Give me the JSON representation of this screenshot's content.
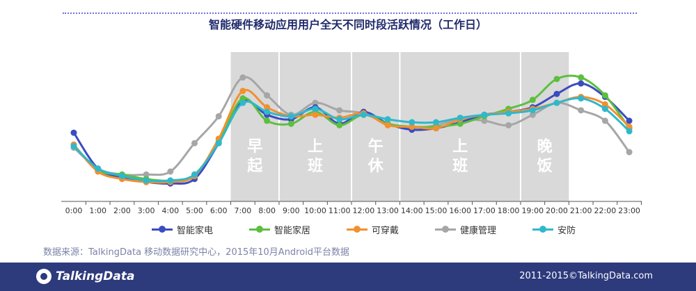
{
  "chart_data": {
    "type": "line",
    "title": "智能硬件移动应用用户全天不同时段活跃情况（工作日）",
    "categories": [
      "0:00",
      "1:00",
      "2:00",
      "3:00",
      "4:00",
      "5:00",
      "6:00",
      "7:00",
      "8:00",
      "9:00",
      "10:00",
      "11:00",
      "12:00",
      "13:00",
      "14:00",
      "15:00",
      "16:00",
      "17:00",
      "18:00",
      "19:00",
      "20:00",
      "21:00",
      "22:00",
      "23:00"
    ],
    "ylim": [
      0,
      100
    ],
    "grid": false,
    "legend_position": "bottom",
    "series": [
      {
        "name": "智能家电",
        "color": "#3b4cc0",
        "values": [
          46,
          22,
          16,
          13,
          12,
          15,
          39,
          67,
          58,
          55,
          63,
          52,
          60,
          52,
          48,
          49,
          53,
          58,
          60,
          63,
          72,
          79,
          70,
          54
        ]
      },
      {
        "name": "智能家居",
        "color": "#5cbf3f",
        "values": [
          38,
          21,
          18,
          15,
          14,
          18,
          40,
          69,
          54,
          52,
          60,
          51,
          58,
          52,
          50,
          50,
          52,
          57,
          62,
          68,
          82,
          83,
          71,
          49
        ]
      },
      {
        "name": "可穿戴",
        "color": "#f2902f",
        "values": [
          38,
          20,
          15,
          13,
          13,
          17,
          42,
          74,
          63,
          57,
          58,
          56,
          59,
          51,
          50,
          49,
          55,
          58,
          60,
          62,
          66,
          70,
          65,
          50
        ]
      },
      {
        "name": "健康管理",
        "color": "#a6a6a6",
        "values": [
          36,
          22,
          18,
          18,
          20,
          39,
          57,
          83,
          71,
          58,
          66,
          61,
          59,
          52,
          49,
          51,
          55,
          54,
          51,
          58,
          66,
          61,
          54,
          33
        ]
      },
      {
        "name": "安防",
        "color": "#2fb8cc",
        "values": [
          37,
          22,
          17,
          14,
          14,
          18,
          39,
          66,
          60,
          57,
          62,
          55,
          58,
          55,
          53,
          53,
          56,
          58,
          59,
          61,
          66,
          69,
          62,
          47
        ]
      }
    ],
    "bands": [
      {
        "label_top": "早",
        "label_bottom": "起",
        "from": 7,
        "to": 8
      },
      {
        "label_top": "上",
        "label_bottom": "班",
        "from": 9,
        "to": 11
      },
      {
        "label_top": "午",
        "label_bottom": "休",
        "from": 12,
        "to": 13
      },
      {
        "label_top": "上",
        "label_bottom": "班",
        "from": 14,
        "to": 18
      },
      {
        "label_top": "晚",
        "label_bottom": "饭",
        "from": 19,
        "to": 20
      }
    ]
  },
  "source": "数据来源：TalkingData 移动数据研究中心，2015年10月Android平台数据",
  "footer": {
    "logo": "TalkingData",
    "copyright": "2011-2015©TalkingData.com"
  }
}
